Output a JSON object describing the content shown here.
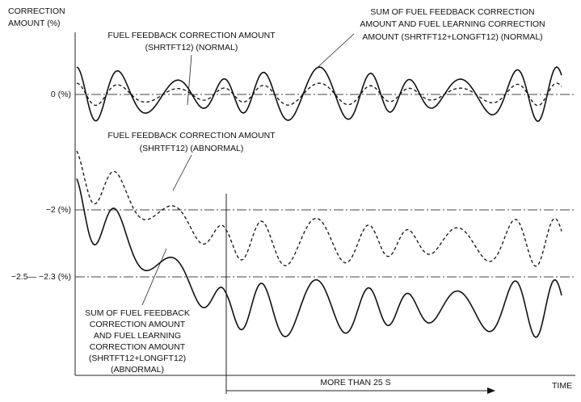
{
  "axis_label": [
    "CORRECTION",
    "AMOUNT (%)"
  ],
  "levels": [
    "0 (%)",
    "−2 (%)",
    "−2.5— −2.3 (%)"
  ],
  "annotations": {
    "feedback_normal": [
      "FUEL FEEDBACK CORRECTION AMOUNT",
      "(SHRTFT12) (NORMAL)"
    ],
    "sum_normal": [
      "SUM OF FUEL FEEDBACK CORRECTION",
      "AMOUNT AND FUEL LEARNING CORRECTION",
      "AMOUNT (SHRTFT12+LONGFT12) (NORMAL)"
    ],
    "feedback_abnormal": [
      "FUEL FEEDBACK CORRECTION AMOUNT",
      "(SHRTFT12) (ABNORMAL)"
    ],
    "sum_abnormal": [
      "SUM OF FUEL FEEDBACK",
      "CORRECTION AMOUNT",
      "AND FUEL LEARNING",
      "CORRECTION AMOUNT",
      "(SHRTFT12+LONGFT12)",
      "(ABNORMAL)"
    ]
  },
  "duration": "MORE THAN 25 S",
  "x_axis_label": "TIME"
}
